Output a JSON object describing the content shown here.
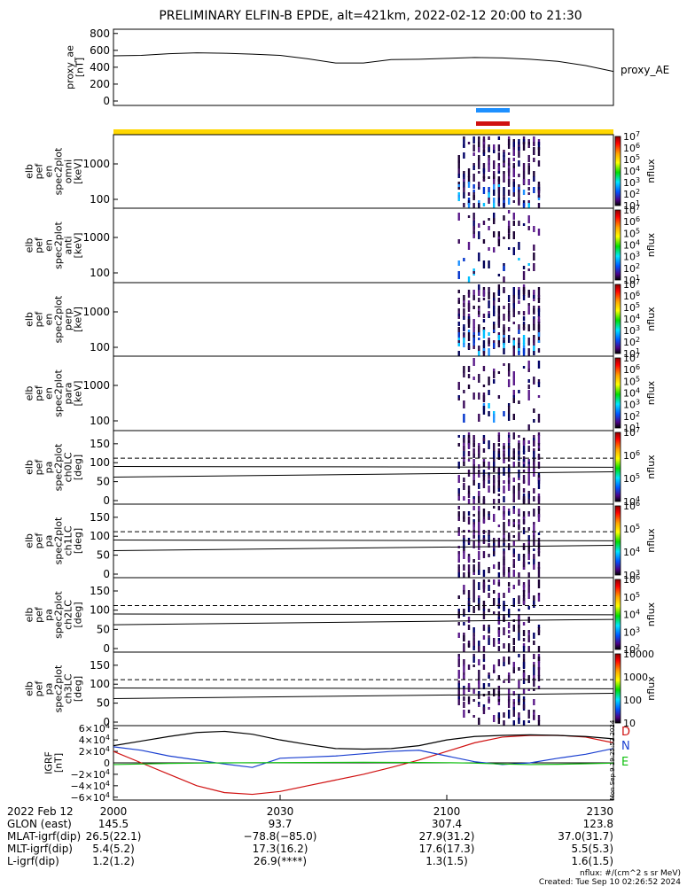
{
  "title": "PRELIMINARY ELFIN-B EPDE, alt=421km, 2022-02-12 20:00 to 21:30",
  "colors": {
    "frame": "#000000",
    "yellow_bar": "#ffd700",
    "blue_bar": "#1e90ff",
    "red_bar": "#d01010",
    "igrf_d": "#d01010",
    "igrf_n": "#1a3fd0",
    "igrf_e": "#10c010",
    "igrf_total": "#000000"
  },
  "chart_data": [
    {
      "type": "line",
      "panel": "proxy_ae",
      "ylabel": [
        "proxy_ae",
        "[nT]"
      ],
      "right_label": "proxy_AE",
      "yticks": [
        "800",
        "600",
        "400",
        "200",
        "0"
      ],
      "ylim": [
        0,
        850
      ],
      "x_minutes": [
        0,
        5,
        10,
        15,
        20,
        25,
        30,
        35,
        40,
        45,
        50,
        55,
        60,
        65,
        70,
        75,
        80,
        85,
        90
      ],
      "values": [
        535,
        540,
        560,
        570,
        565,
        555,
        540,
        500,
        450,
        450,
        490,
        495,
        505,
        515,
        510,
        495,
        470,
        420,
        350
      ]
    },
    {
      "type": "heatmap",
      "panel": "omni",
      "ylabel": [
        "elb",
        "pef",
        "en",
        "spec2plot",
        "omni",
        "[keV]"
      ],
      "yticks": [
        "1000",
        "100"
      ],
      "colorbar_label": "nflux",
      "colorbar_ticks": [
        "10^7",
        "10^6",
        "10^5",
        "10^4",
        "10^3",
        "10^2",
        "10^1"
      ]
    },
    {
      "type": "heatmap",
      "panel": "anti",
      "ylabel": [
        "elb",
        "pef",
        "en",
        "spec2plot",
        "anti",
        "[keV]"
      ],
      "yticks": [
        "1000",
        "100"
      ],
      "colorbar_label": "nflux",
      "colorbar_ticks": [
        "10^7",
        "10^6",
        "10^5",
        "10^4",
        "10^3",
        "10^2",
        "10^1"
      ]
    },
    {
      "type": "heatmap",
      "panel": "perp",
      "ylabel": [
        "elb",
        "pef",
        "en",
        "spec2plot",
        "perp",
        "[keV]"
      ],
      "yticks": [
        "1000",
        "100"
      ],
      "colorbar_label": "nflux",
      "colorbar_ticks": [
        "10^7",
        "10^6",
        "10^5",
        "10^4",
        "10^3",
        "10^2",
        "10^1"
      ]
    },
    {
      "type": "heatmap",
      "panel": "para",
      "ylabel": [
        "elb",
        "pef",
        "en",
        "spec2plot",
        "para",
        "[keV]"
      ],
      "yticks": [
        "1000",
        "100"
      ],
      "colorbar_label": "nflux",
      "colorbar_ticks": [
        "10^7",
        "10^6",
        "10^5",
        "10^4",
        "10^3",
        "10^2",
        "10^1"
      ]
    },
    {
      "type": "heatmap",
      "panel": "ch0LC",
      "ylabel": [
        "elb",
        "pef",
        "pa",
        "spec2plot",
        "ch0LC",
        "[deg]"
      ],
      "yticks": [
        "150",
        "100",
        "50",
        "0"
      ],
      "ylim": [
        0,
        180
      ],
      "colorbar_label": "nflux",
      "colorbar_ticks": [
        "10^7",
        "10^6",
        "10^5",
        "10^4"
      ]
    },
    {
      "type": "heatmap",
      "panel": "ch1LC",
      "ylabel": [
        "elb",
        "pef",
        "pa",
        "spec2plot",
        "ch1LC",
        "[deg]"
      ],
      "yticks": [
        "150",
        "100",
        "50",
        "0"
      ],
      "ylim": [
        0,
        180
      ],
      "colorbar_label": "nflux",
      "colorbar_ticks": [
        "10^6",
        "10^5",
        "10^4",
        "10^3"
      ]
    },
    {
      "type": "heatmap",
      "panel": "ch2LC",
      "ylabel": [
        "elb",
        "pef",
        "pa",
        "spec2plot",
        "ch2LC",
        "[deg]"
      ],
      "yticks": [
        "150",
        "100",
        "50",
        "0"
      ],
      "ylim": [
        0,
        180
      ],
      "colorbar_label": "nflux",
      "colorbar_ticks": [
        "10^6",
        "10^5",
        "10^4",
        "10^3",
        "10^2"
      ]
    },
    {
      "type": "heatmap",
      "panel": "ch3LC",
      "ylabel": [
        "elb",
        "pef",
        "pa",
        "spec2plot",
        "ch3LC",
        "[deg]"
      ],
      "yticks": [
        "150",
        "100",
        "50",
        "0"
      ],
      "ylim": [
        0,
        180
      ],
      "colorbar_label": "nflux",
      "colorbar_ticks": [
        "10000",
        "1000",
        "100",
        "10"
      ]
    },
    {
      "type": "line",
      "panel": "igrf",
      "ylabel": [
        "IGRF",
        "[nT]"
      ],
      "yticks": [
        "6×10^4",
        "4×10^4",
        "2×10^4",
        "0",
        "−2×10^4",
        "−4×10^4",
        "−6×10^4"
      ],
      "ylim": [
        -65000,
        65000
      ],
      "x_minutes": [
        0,
        5,
        10,
        15,
        20,
        25,
        30,
        35,
        40,
        45,
        50,
        55,
        60,
        65,
        70,
        75,
        80,
        85,
        90
      ],
      "series": [
        {
          "name": "D",
          "values": [
            20000,
            0,
            -20000,
            -40000,
            -52000,
            -55000,
            -50000,
            -40000,
            -30000,
            -20000,
            -8000,
            5000,
            20000,
            35000,
            45000,
            48000,
            48000,
            45000,
            35000
          ]
        },
        {
          "name": "N",
          "values": [
            28000,
            22000,
            12000,
            5000,
            -2000,
            -8000,
            8000,
            10000,
            12000,
            16000,
            20000,
            22000,
            12000,
            2000,
            -3000,
            0,
            8000,
            15000,
            25000
          ]
        },
        {
          "name": "E",
          "values": [
            -3000,
            -2000,
            -1000,
            -500,
            0,
            300,
            400,
            600,
            800,
            1000,
            800,
            600,
            300,
            -500,
            -2000,
            -3000,
            -2500,
            -1500,
            -500
          ]
        },
        {
          "values": [
            30000,
            38000,
            46000,
            53000,
            55000,
            50000,
            40000,
            32000,
            25000,
            24000,
            25000,
            30000,
            40000,
            46000,
            48000,
            49000,
            48000,
            46000,
            42000
          ]
        }
      ]
    }
  ],
  "side_stamp": "Mon Sep  9 19:25:52 2024",
  "footer_rows": [
    [
      "2022 Feb 12",
      "2000",
      "2030",
      "2100",
      "2130"
    ],
    [
      "GLON (east)",
      "145.5",
      "93.7",
      "307.4",
      "123.8"
    ],
    [
      "MLAT-igrf(dip)",
      "26.5(22.1)",
      "−78.8(−85.0)",
      "27.9(31.2)",
      "37.0(31.7)"
    ],
    [
      "MLT-igrf(dip)",
      "5.4(5.2)",
      "17.3(16.2)",
      "17.6(17.3)",
      "5.5(5.3)"
    ],
    [
      "L-igrf(dip)",
      "1.2(1.2)",
      "26.9(****)",
      "1.3(1.5)",
      "1.6(1.5)"
    ]
  ],
  "footer_note": "nflux: #/(cm^2 s sr MeV)",
  "created": "Created: Tue Sep 10 02:26:52 2024"
}
